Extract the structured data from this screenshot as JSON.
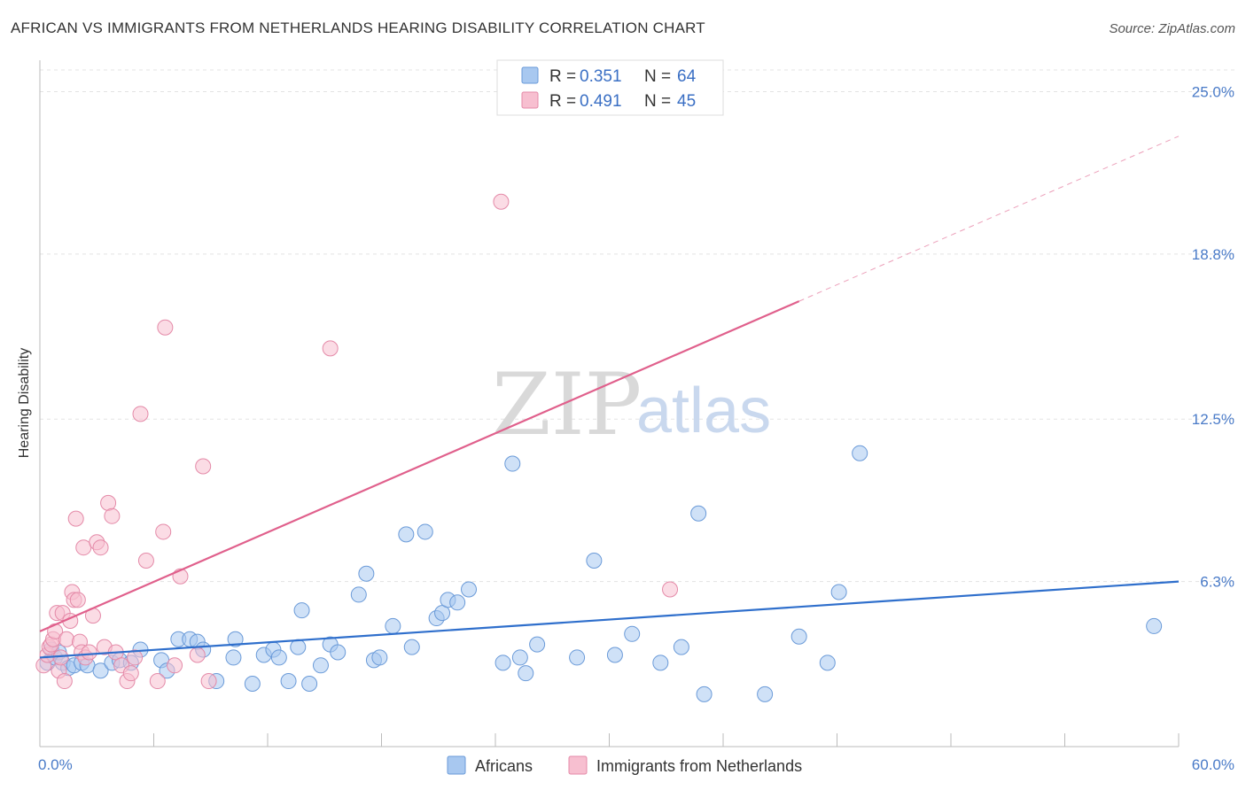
{
  "header": {
    "title": "AFRICAN VS IMMIGRANTS FROM NETHERLANDS HEARING DISABILITY CORRELATION CHART",
    "source": "Source: ZipAtlas.com"
  },
  "watermark": {
    "zip": "ZIP",
    "atlas": "atlas"
  },
  "legend": {
    "rows": [
      {
        "r_label": "R =",
        "r_value": "0.351",
        "n_label": "N =",
        "n_value": "64",
        "color": "#a8c8f0",
        "stroke": "#6a9ad8"
      },
      {
        "r_label": "R =",
        "r_value": "0.491",
        "n_label": "N =",
        "n_value": "45",
        "color": "#f7bfd0",
        "stroke": "#e48aa8"
      }
    ]
  },
  "bottom_legend": {
    "items": [
      {
        "label": "Africans",
        "color": "#a8c8f0",
        "stroke": "#6a9ad8"
      },
      {
        "label": "Immigrants from Netherlands",
        "color": "#f7bfd0",
        "stroke": "#e48aa8"
      }
    ]
  },
  "chart_data": {
    "type": "scatter",
    "title": "AFRICAN VS IMMIGRANTS FROM NETHERLANDS HEARING DISABILITY CORRELATION CHART",
    "xlabel": "",
    "ylabel": "Hearing Disability",
    "xlim": [
      0,
      60
    ],
    "ylim": [
      0,
      26.2
    ],
    "x_tick_labels": [
      "0.0%",
      "60.0%"
    ],
    "y_ticks": [
      6.3,
      12.5,
      18.8,
      25.0
    ],
    "y_tick_labels": [
      "6.3%",
      "12.5%",
      "18.8%",
      "25.0%"
    ],
    "grid": true,
    "legend_position": "top-center",
    "series": [
      {
        "name": "Africans",
        "color": "#a8c8f0",
        "stroke": "#6a9ad8",
        "line_color": "#2f6fcc",
        "trend": {
          "x": [
            0,
            60
          ],
          "y": [
            3.4,
            6.3
          ]
        },
        "points": [
          [
            0.4,
            3.2
          ],
          [
            0.6,
            3.7
          ],
          [
            0.8,
            3.4
          ],
          [
            1.0,
            3.6
          ],
          [
            1.2,
            3.2
          ],
          [
            1.5,
            3.0
          ],
          [
            1.8,
            3.1
          ],
          [
            2.2,
            3.2
          ],
          [
            2.5,
            3.1
          ],
          [
            3.2,
            2.9
          ],
          [
            3.8,
            3.2
          ],
          [
            4.2,
            3.3
          ],
          [
            4.8,
            3.2
          ],
          [
            5.3,
            3.7
          ],
          [
            6.4,
            3.3
          ],
          [
            6.7,
            2.9
          ],
          [
            7.3,
            4.1
          ],
          [
            7.9,
            4.1
          ],
          [
            8.3,
            4.0
          ],
          [
            8.6,
            3.7
          ],
          [
            9.3,
            2.5
          ],
          [
            10.2,
            3.4
          ],
          [
            10.3,
            4.1
          ],
          [
            11.2,
            2.4
          ],
          [
            11.8,
            3.5
          ],
          [
            12.3,
            3.7
          ],
          [
            12.6,
            3.4
          ],
          [
            13.1,
            2.5
          ],
          [
            13.6,
            3.8
          ],
          [
            13.8,
            5.2
          ],
          [
            14.2,
            2.4
          ],
          [
            14.8,
            3.1
          ],
          [
            15.3,
            3.9
          ],
          [
            15.7,
            3.6
          ],
          [
            16.8,
            5.8
          ],
          [
            17.2,
            6.6
          ],
          [
            17.6,
            3.3
          ],
          [
            17.9,
            3.4
          ],
          [
            18.6,
            4.6
          ],
          [
            19.3,
            8.1
          ],
          [
            19.6,
            3.8
          ],
          [
            20.3,
            8.2
          ],
          [
            20.9,
            4.9
          ],
          [
            21.2,
            5.1
          ],
          [
            21.5,
            5.6
          ],
          [
            22.0,
            5.5
          ],
          [
            22.6,
            6.0
          ],
          [
            24.4,
            3.2
          ],
          [
            24.9,
            10.8
          ],
          [
            25.3,
            3.4
          ],
          [
            25.6,
            2.8
          ],
          [
            26.2,
            3.9
          ],
          [
            28.3,
            3.4
          ],
          [
            29.2,
            7.1
          ],
          [
            30.3,
            3.5
          ],
          [
            31.2,
            4.3
          ],
          [
            32.7,
            3.2
          ],
          [
            33.8,
            3.8
          ],
          [
            34.7,
            8.9
          ],
          [
            35.0,
            2.0
          ],
          [
            38.2,
            2.0
          ],
          [
            40.0,
            4.2
          ],
          [
            41.5,
            3.2
          ],
          [
            42.1,
            5.9
          ],
          [
            43.2,
            11.2
          ],
          [
            58.7,
            4.6
          ]
        ]
      },
      {
        "name": "Immigrants from Netherlands",
        "color": "#f7bfd0",
        "stroke": "#e48aa8",
        "line_color": "#e0608c",
        "trend": {
          "x": [
            0,
            40
          ],
          "y": [
            4.4,
            17.0
          ]
        },
        "trend_dashed": {
          "x": [
            40,
            60
          ],
          "y": [
            17.0,
            23.3
          ]
        },
        "points": [
          [
            0.2,
            3.1
          ],
          [
            0.4,
            3.5
          ],
          [
            0.5,
            3.8
          ],
          [
            0.6,
            3.9
          ],
          [
            0.7,
            4.1
          ],
          [
            0.8,
            4.4
          ],
          [
            0.9,
            5.1
          ],
          [
            1.0,
            2.9
          ],
          [
            1.1,
            3.4
          ],
          [
            1.2,
            5.1
          ],
          [
            1.3,
            2.5
          ],
          [
            1.4,
            4.1
          ],
          [
            1.6,
            4.8
          ],
          [
            1.7,
            5.9
          ],
          [
            1.8,
            5.6
          ],
          [
            1.9,
            8.7
          ],
          [
            2.0,
            5.6
          ],
          [
            2.1,
            4.0
          ],
          [
            2.2,
            3.6
          ],
          [
            2.3,
            7.6
          ],
          [
            2.4,
            3.4
          ],
          [
            2.6,
            3.6
          ],
          [
            2.8,
            5.0
          ],
          [
            3.0,
            7.8
          ],
          [
            3.2,
            7.6
          ],
          [
            3.4,
            3.8
          ],
          [
            3.6,
            9.3
          ],
          [
            3.8,
            8.8
          ],
          [
            4.0,
            3.6
          ],
          [
            4.3,
            3.1
          ],
          [
            4.6,
            2.5
          ],
          [
            4.8,
            2.8
          ],
          [
            5.0,
            3.4
          ],
          [
            5.3,
            12.7
          ],
          [
            5.6,
            7.1
          ],
          [
            6.2,
            2.5
          ],
          [
            6.5,
            8.2
          ],
          [
            6.6,
            16.0
          ],
          [
            7.1,
            3.1
          ],
          [
            7.4,
            6.5
          ],
          [
            8.3,
            3.5
          ],
          [
            8.6,
            10.7
          ],
          [
            8.9,
            2.5
          ],
          [
            15.3,
            15.2
          ],
          [
            24.3,
            20.8
          ],
          [
            33.2,
            6.0
          ]
        ]
      }
    ]
  }
}
